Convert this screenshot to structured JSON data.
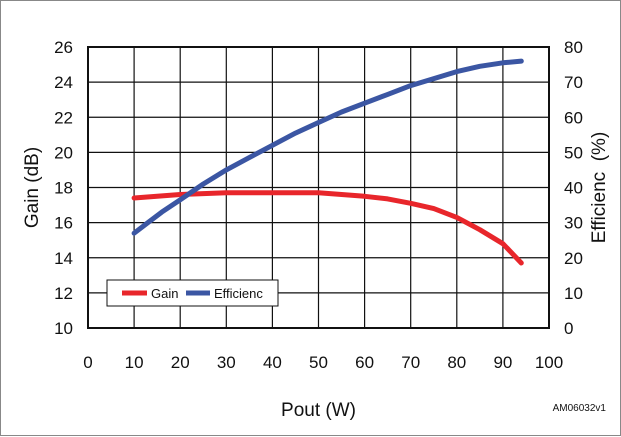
{
  "chart_data": {
    "type": "line",
    "xlabel": "Pout (W)",
    "ylabel": "Gain (dB)",
    "y2label": "Efficienc  (%)",
    "xlim": [
      0,
      100
    ],
    "ylim": [
      10,
      26
    ],
    "y2lim": [
      0,
      80
    ],
    "x_ticks": [
      0,
      10,
      20,
      30,
      40,
      50,
      60,
      70,
      80,
      90,
      100
    ],
    "y_ticks": [
      10,
      12,
      14,
      16,
      18,
      20,
      22,
      24,
      26
    ],
    "y2_ticks": [
      0,
      10,
      20,
      30,
      40,
      50,
      60,
      70,
      80
    ],
    "grid": true,
    "legend_position": "bottom-left",
    "series": [
      {
        "name": "Gain",
        "axis": "left",
        "color": "#e8262b",
        "points": [
          [
            10,
            17.4
          ],
          [
            15,
            17.5
          ],
          [
            20,
            17.6
          ],
          [
            25,
            17.65
          ],
          [
            30,
            17.7
          ],
          [
            40,
            17.7
          ],
          [
            50,
            17.7
          ],
          [
            55,
            17.6
          ],
          [
            60,
            17.5
          ],
          [
            65,
            17.35
          ],
          [
            70,
            17.1
          ],
          [
            75,
            16.8
          ],
          [
            80,
            16.3
          ],
          [
            85,
            15.6
          ],
          [
            90,
            14.8
          ],
          [
            94,
            13.7
          ]
        ]
      },
      {
        "name": "Efficienc",
        "axis": "right",
        "color": "#3b56a3",
        "points": [
          [
            10,
            27
          ],
          [
            13,
            30
          ],
          [
            16,
            33
          ],
          [
            20,
            36.5
          ],
          [
            25,
            41
          ],
          [
            30,
            45
          ],
          [
            35,
            48.5
          ],
          [
            40,
            52
          ],
          [
            45,
            55.5
          ],
          [
            50,
            58.5
          ],
          [
            55,
            61.5
          ],
          [
            60,
            64
          ],
          [
            65,
            66.5
          ],
          [
            70,
            69
          ],
          [
            75,
            71
          ],
          [
            80,
            73
          ],
          [
            85,
            74.5
          ],
          [
            90,
            75.5
          ],
          [
            94,
            76
          ]
        ]
      }
    ]
  },
  "figure_code": "AM06032v1"
}
